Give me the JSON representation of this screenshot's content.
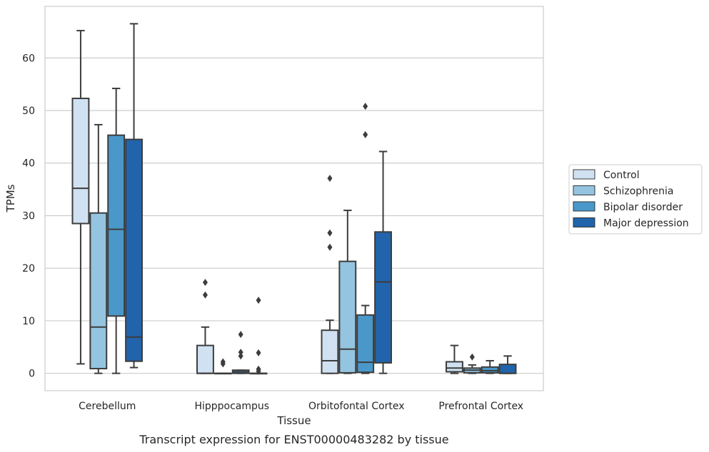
{
  "chart_data": {
    "type": "box",
    "xlabel": "Tissue",
    "ylabel": "TPMs",
    "caption": "Transcript expression for ENST00000483282 by tissue",
    "ylim": [
      -3.3,
      69.8
    ],
    "yticks": [
      0,
      10,
      20,
      30,
      40,
      50,
      60
    ],
    "grid": "horizontal",
    "legend_position": "right",
    "categories": [
      "Cerebellum",
      "Hipppocampus",
      "Orbitofontal Cortex",
      "Prefrontal Cortex"
    ],
    "series": [
      {
        "name": "Control",
        "color": "#d0e1f2",
        "boxes": [
          {
            "whislo": 1.8,
            "q1": 28.5,
            "med": 35.2,
            "q3": 52.3,
            "whishi": 65.2,
            "fliers": []
          },
          {
            "whislo": 0.0,
            "q1": 0.0,
            "med": 0.0,
            "q3": 5.3,
            "whishi": 8.8,
            "fliers": [
              14.9,
              17.3
            ]
          },
          {
            "whislo": 0.0,
            "q1": 0.0,
            "med": 2.4,
            "q3": 8.2,
            "whishi": 10.1,
            "fliers": [
              24.0,
              26.7,
              37.1
            ]
          },
          {
            "whislo": 0.0,
            "q1": 0.3,
            "med": 1.0,
            "q3": 2.2,
            "whishi": 5.3,
            "fliers": []
          }
        ]
      },
      {
        "name": "Schizophrenia",
        "color": "#94c4df",
        "boxes": [
          {
            "whislo": 0.0,
            "q1": 0.9,
            "med": 8.8,
            "q3": 30.5,
            "whishi": 47.3,
            "fliers": []
          },
          {
            "whislo": 0.0,
            "q1": 0.0,
            "med": 0.0,
            "q3": 0.0,
            "whishi": 0.0,
            "fliers": [
              1.8,
              2.2
            ]
          },
          {
            "whislo": 0.0,
            "q1": 0.1,
            "med": 4.6,
            "q3": 21.3,
            "whishi": 31.0,
            "fliers": []
          },
          {
            "whislo": 0.0,
            "q1": 0.1,
            "med": 0.6,
            "q3": 1.0,
            "whishi": 1.6,
            "fliers": [
              3.1
            ]
          }
        ]
      },
      {
        "name": "Bipolar disorder",
        "color": "#4a98c9",
        "boxes": [
          {
            "whislo": 0.0,
            "q1": 10.9,
            "med": 27.4,
            "q3": 45.3,
            "whishi": 54.2,
            "fliers": []
          },
          {
            "whislo": 0.0,
            "q1": 0.0,
            "med": 0.3,
            "q3": 0.6,
            "whishi": 0.6,
            "fliers": [
              3.3,
              4.0,
              7.4
            ]
          },
          {
            "whislo": 0.0,
            "q1": 0.2,
            "med": 2.1,
            "q3": 11.1,
            "whishi": 12.9,
            "fliers": [
              45.4,
              50.8
            ]
          },
          {
            "whislo": 0.0,
            "q1": 0.1,
            "med": 0.5,
            "q3": 1.2,
            "whishi": 2.4,
            "fliers": []
          }
        ]
      },
      {
        "name": "Major depression",
        "color": "#2164ab",
        "boxes": [
          {
            "whislo": 1.1,
            "q1": 2.3,
            "med": 6.9,
            "q3": 44.5,
            "whishi": 66.5,
            "fliers": []
          },
          {
            "whislo": 0.0,
            "q1": 0.0,
            "med": 0.0,
            "q3": 0.0,
            "whishi": 0.0,
            "fliers": [
              0.4,
              0.8,
              3.9,
              13.9
            ]
          },
          {
            "whislo": 0.0,
            "q1": 2.0,
            "med": 17.4,
            "q3": 26.9,
            "whishi": 42.2,
            "fliers": []
          },
          {
            "whislo": 0.0,
            "q1": 0.0,
            "med": 0.0,
            "q3": 1.7,
            "whishi": 3.3,
            "fliers": []
          }
        ]
      }
    ]
  }
}
